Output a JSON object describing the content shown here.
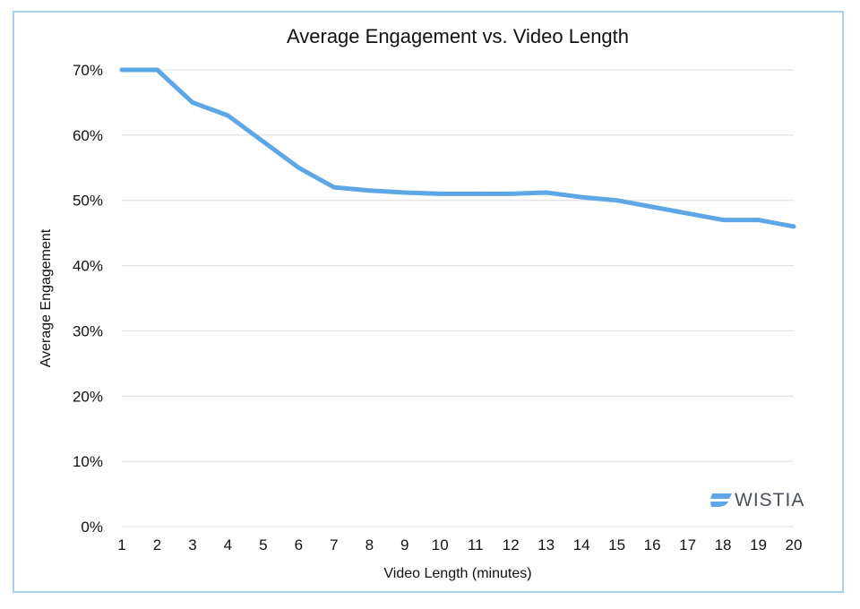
{
  "chart_data": {
    "type": "line",
    "title": "Average Engagement vs. Video Length",
    "xlabel": "Video Length (minutes)",
    "ylabel": "Average Engagement",
    "x": [
      1,
      2,
      3,
      4,
      5,
      6,
      7,
      8,
      9,
      10,
      11,
      12,
      13,
      14,
      15,
      16,
      17,
      18,
      19,
      20
    ],
    "x_tick_labels": [
      "1",
      "2",
      "3",
      "4",
      "5",
      "6",
      "7",
      "8",
      "9",
      "10",
      "11",
      "12",
      "13",
      "14",
      "15",
      "16",
      "17",
      "18",
      "19",
      "20"
    ],
    "series": [
      {
        "values": [
          70,
          70,
          65,
          63,
          59,
          55,
          52,
          51.5,
          51.2,
          51,
          51,
          51,
          51.2,
          50.5,
          50,
          49,
          48,
          47,
          47,
          46
        ]
      }
    ],
    "y_ticks": [
      0,
      10,
      20,
      30,
      40,
      50,
      60,
      70
    ],
    "y_tick_labels": [
      "0%",
      "10%",
      "20%",
      "30%",
      "40%",
      "50%",
      "60%",
      "70%"
    ],
    "ylim": [
      0,
      70
    ],
    "xlim": [
      1,
      20
    ],
    "grid": true,
    "line_color": "#5ea7e6",
    "grid_color": "#dcdcdc",
    "frame_color": "#a9d2e8",
    "logo": {
      "icon": "wistia-icon",
      "text": "WISTIA",
      "icon_color": "#5ea7e6",
      "text_color": "#4a4f58"
    }
  }
}
